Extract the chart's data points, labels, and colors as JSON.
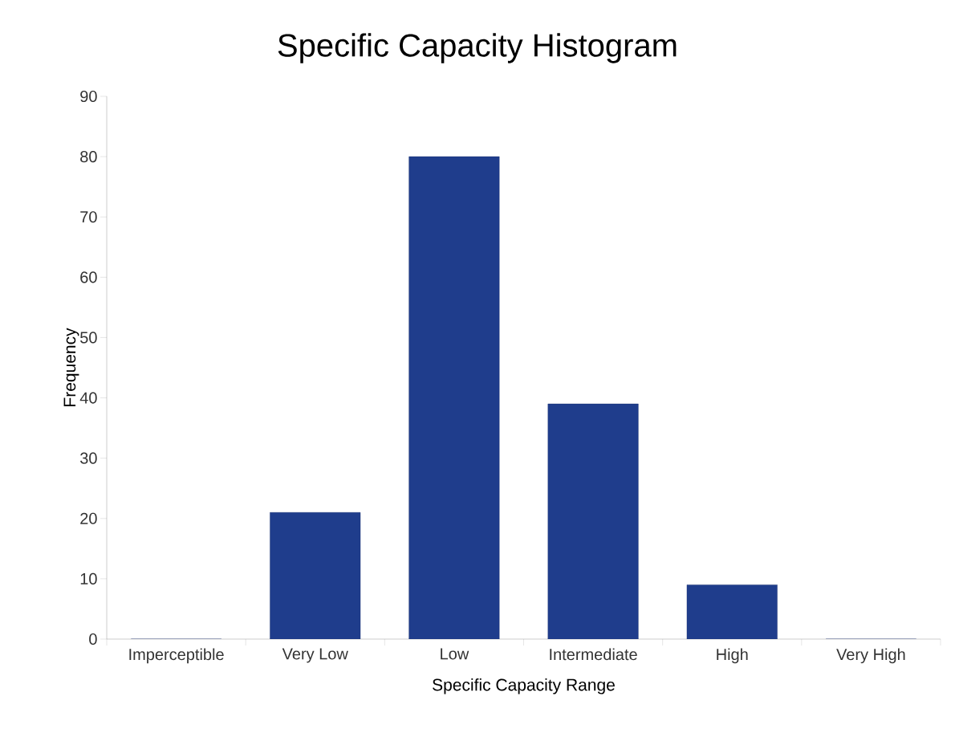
{
  "chart_data": {
    "type": "bar",
    "title": "Specific Capacity Histogram",
    "xlabel": "Specific Capacity Range",
    "ylabel": "Frequency",
    "categories": [
      "Imperceptible",
      "Very Low",
      "Low",
      "Intermediate",
      "High",
      "Very High"
    ],
    "values": [
      0,
      21,
      80,
      39,
      9,
      0
    ],
    "color": "#1f3d8c",
    "ylim": [
      0,
      90
    ],
    "yticks": [
      0,
      10,
      20,
      30,
      40,
      50,
      60,
      70,
      80,
      90
    ],
    "grid": false
  }
}
